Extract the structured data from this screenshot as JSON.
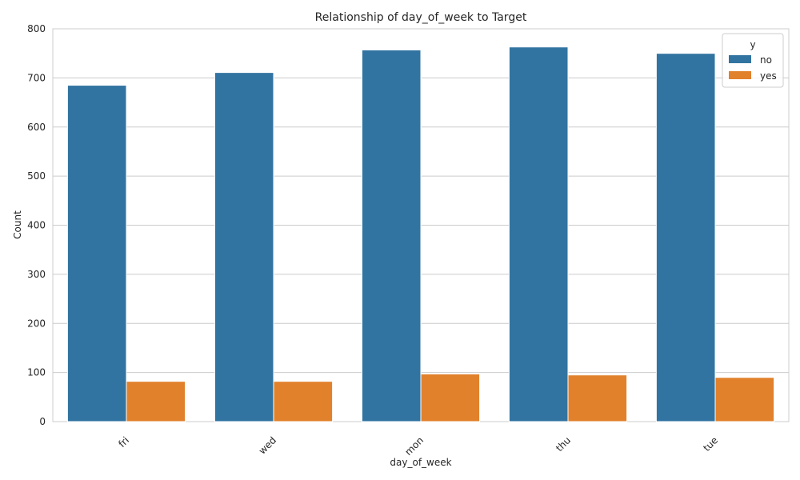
{
  "chart_data": {
    "type": "bar",
    "title": "Relationship of day_of_week to Target",
    "xlabel": "day_of_week",
    "ylabel": "Count",
    "categories": [
      "fri",
      "wed",
      "mon",
      "thu",
      "tue"
    ],
    "series": [
      {
        "name": "no",
        "color": "#3274a1",
        "values": [
          685,
          711,
          757,
          763,
          750
        ]
      },
      {
        "name": "yes",
        "color": "#e1812c",
        "values": [
          82,
          82,
          97,
          95,
          90
        ]
      }
    ],
    "ylim": [
      0,
      800
    ],
    "yticks": [
      0,
      100,
      200,
      300,
      400,
      500,
      600,
      700,
      800
    ],
    "grid": true,
    "legend": {
      "title": "y",
      "position": "top-right"
    }
  }
}
